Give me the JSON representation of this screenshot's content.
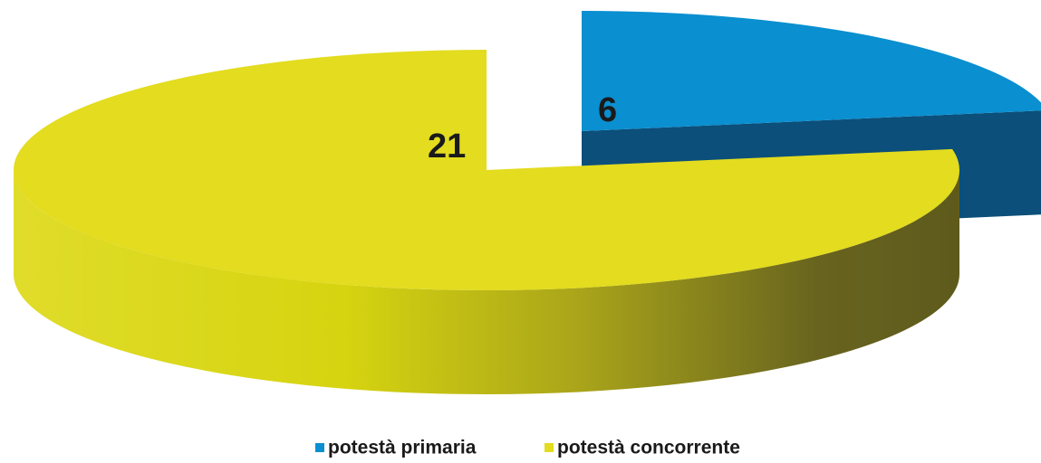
{
  "chart_data": {
    "type": "pie",
    "categories": [
      "potestà primaria",
      "potestà concorrente"
    ],
    "values": [
      6,
      21
    ],
    "colors": [
      "#0a8fd0",
      "#e3dc1f"
    ],
    "legend": "bottom"
  }
}
